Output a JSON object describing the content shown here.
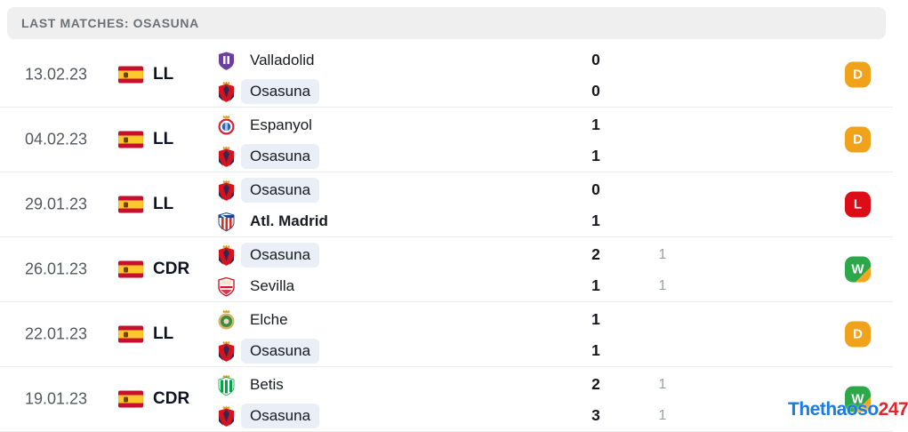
{
  "header": {
    "title": "LAST MATCHES: OSASUNA"
  },
  "watermark": {
    "text_blue": "Thethaoso",
    "text_red": "247"
  },
  "colors": {
    "draw_badge": "#f0a21b",
    "loss_badge": "#dc0d17",
    "win_badge": "#2aa84a",
    "win_badge_corner": "#f2a51f",
    "highlight_pill": "#e9eef7",
    "flag_red": "#c8102e",
    "flag_yellow": "#ffc72c"
  },
  "matches": [
    {
      "date": "13.02.23",
      "competition": "LL",
      "result": "D",
      "teams": [
        {
          "name": "Valladolid",
          "score": "0",
          "ht": "",
          "logo": "valladolid-crest",
          "highlight": false,
          "bold": false
        },
        {
          "name": "Osasuna",
          "score": "0",
          "ht": "",
          "logo": "osasuna-crest",
          "highlight": true,
          "bold": false
        }
      ]
    },
    {
      "date": "04.02.23",
      "competition": "LL",
      "result": "D",
      "teams": [
        {
          "name": "Espanyol",
          "score": "1",
          "ht": "",
          "logo": "espanyol-crest",
          "highlight": false,
          "bold": false
        },
        {
          "name": "Osasuna",
          "score": "1",
          "ht": "",
          "logo": "osasuna-crest",
          "highlight": true,
          "bold": false
        }
      ]
    },
    {
      "date": "29.01.23",
      "competition": "LL",
      "result": "L",
      "teams": [
        {
          "name": "Osasuna",
          "score": "0",
          "ht": "",
          "logo": "osasuna-crest",
          "highlight": true,
          "bold": false
        },
        {
          "name": "Atl. Madrid",
          "score": "1",
          "ht": "",
          "logo": "atl-madrid-crest",
          "highlight": false,
          "bold": true
        }
      ]
    },
    {
      "date": "26.01.23",
      "competition": "CDR",
      "result": "W",
      "teams": [
        {
          "name": "Osasuna",
          "score": "2",
          "ht": "1",
          "logo": "osasuna-crest",
          "highlight": true,
          "bold": false
        },
        {
          "name": "Sevilla",
          "score": "1",
          "ht": "1",
          "logo": "sevilla-crest",
          "highlight": false,
          "bold": false
        }
      ]
    },
    {
      "date": "22.01.23",
      "competition": "LL",
      "result": "D",
      "teams": [
        {
          "name": "Elche",
          "score": "1",
          "ht": "",
          "logo": "elche-crest",
          "highlight": false,
          "bold": false
        },
        {
          "name": "Osasuna",
          "score": "1",
          "ht": "",
          "logo": "osasuna-crest",
          "highlight": true,
          "bold": false
        }
      ]
    },
    {
      "date": "19.01.23",
      "competition": "CDR",
      "result": "W",
      "teams": [
        {
          "name": "Betis",
          "score": "2",
          "ht": "1",
          "logo": "betis-crest",
          "highlight": false,
          "bold": false
        },
        {
          "name": "Osasuna",
          "score": "3",
          "ht": "1",
          "logo": "osasuna-crest",
          "highlight": true,
          "bold": false
        }
      ]
    }
  ]
}
